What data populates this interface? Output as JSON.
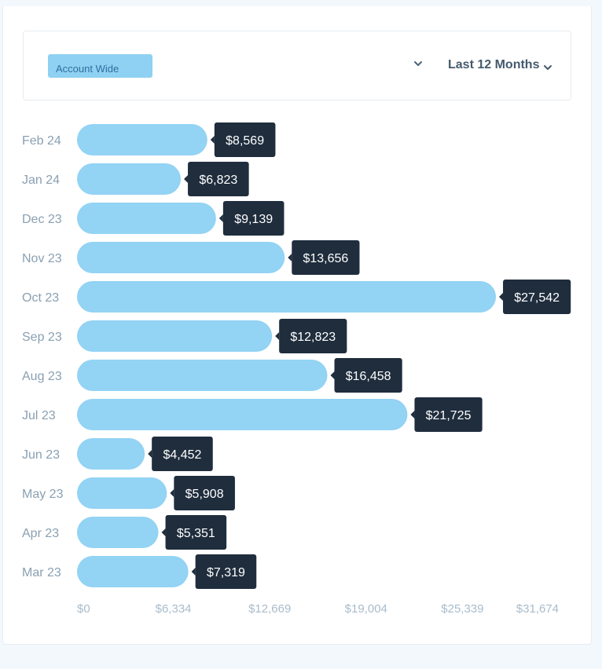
{
  "filters": {
    "account_label": "Account Wide",
    "range_label": "Last 12 Months"
  },
  "icons": {
    "account_dropdown": "chevron-down-icon",
    "range_dropdown": "chevron-down-icon"
  },
  "colors": {
    "bar": "#93d3f4",
    "tooltip_bg": "#1f2d3d",
    "tooltip_text": "#ffffff",
    "axis_text": "#a9bccb",
    "category_text": "#8aa0b2"
  },
  "chart_data": {
    "type": "bar",
    "orientation": "horizontal",
    "categories": [
      "Feb 24",
      "Jan 24",
      "Dec 23",
      "Nov 23",
      "Oct 23",
      "Sep 23",
      "Aug 23",
      "Jul 23",
      "Jun 23",
      "May 23",
      "Apr 23",
      "Mar 23"
    ],
    "values": [
      8569,
      6823,
      9139,
      13656,
      27542,
      12823,
      16458,
      21725,
      4452,
      5908,
      5351,
      7319
    ],
    "value_labels": [
      "$8,569",
      "$6,823",
      "$9,139",
      "$13,656",
      "$27,542",
      "$12,823",
      "$16,458",
      "$21,725",
      "$4,452",
      "$5,908",
      "$5,351",
      "$7,319"
    ],
    "x_ticks": [
      0,
      6334,
      12669,
      19004,
      25339,
      31674
    ],
    "x_tick_labels": [
      "$0",
      "$6,334",
      "$12,669",
      "$19,004",
      "$25,339",
      "$31,674"
    ],
    "xlim": [
      0,
      31674
    ],
    "title": "",
    "xlabel": "",
    "ylabel": "",
    "grid": false,
    "legend": "none"
  }
}
